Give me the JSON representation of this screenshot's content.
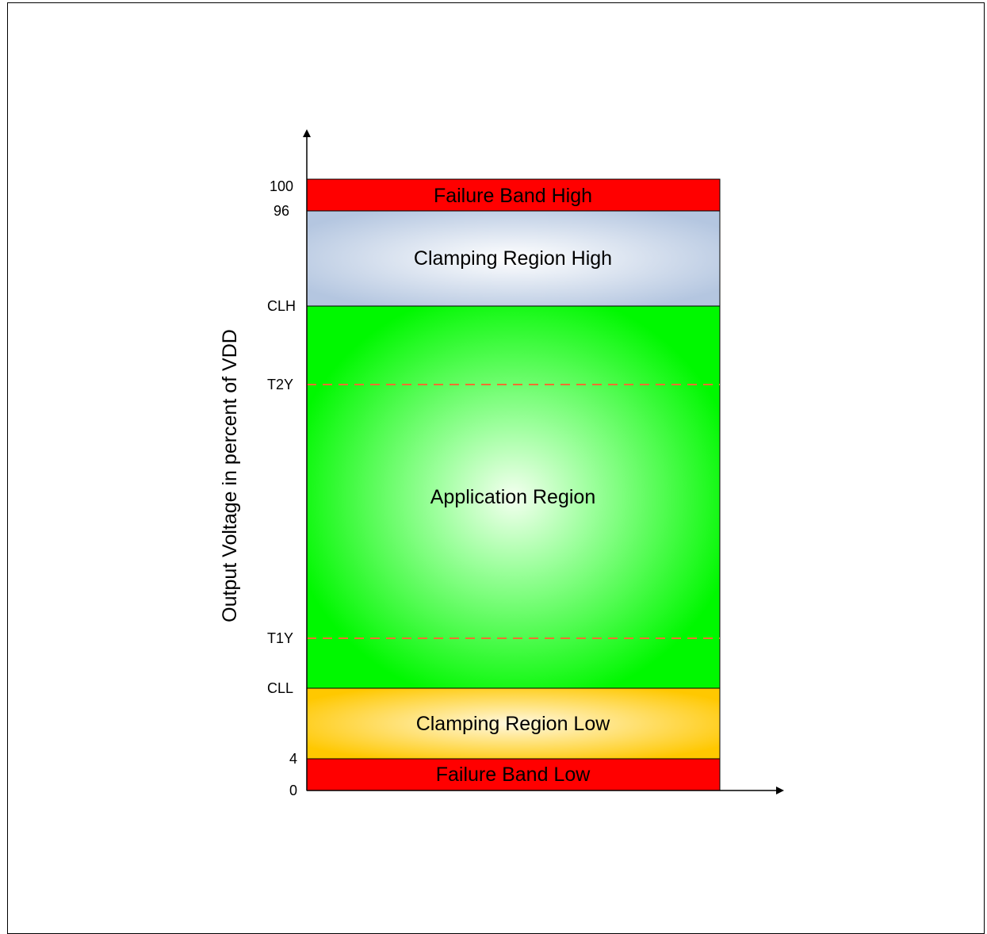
{
  "diagram": {
    "y_axis_title": "Output Voltage in percent of VDD",
    "ticks": {
      "v100": "100",
      "v96": "96",
      "clh": "CLH",
      "t2y": "T2Y",
      "t1y": "T1Y",
      "cll": "CLL",
      "v4": "4",
      "v0": "0"
    },
    "bands": {
      "failure_high": {
        "label": "Failure Band High",
        "color": "#ff0000"
      },
      "clamping_high": {
        "label": "Clamping Region High",
        "color": "#b8c8e0"
      },
      "application": {
        "label": "Application Region",
        "color": "#00ff00"
      },
      "clamping_low": {
        "label": "Clamping Region Low",
        "color": "#ffc800"
      },
      "failure_low": {
        "label": "Failure Band Low",
        "color": "#ff0000"
      }
    },
    "threshold_line_color": "#f07030"
  }
}
